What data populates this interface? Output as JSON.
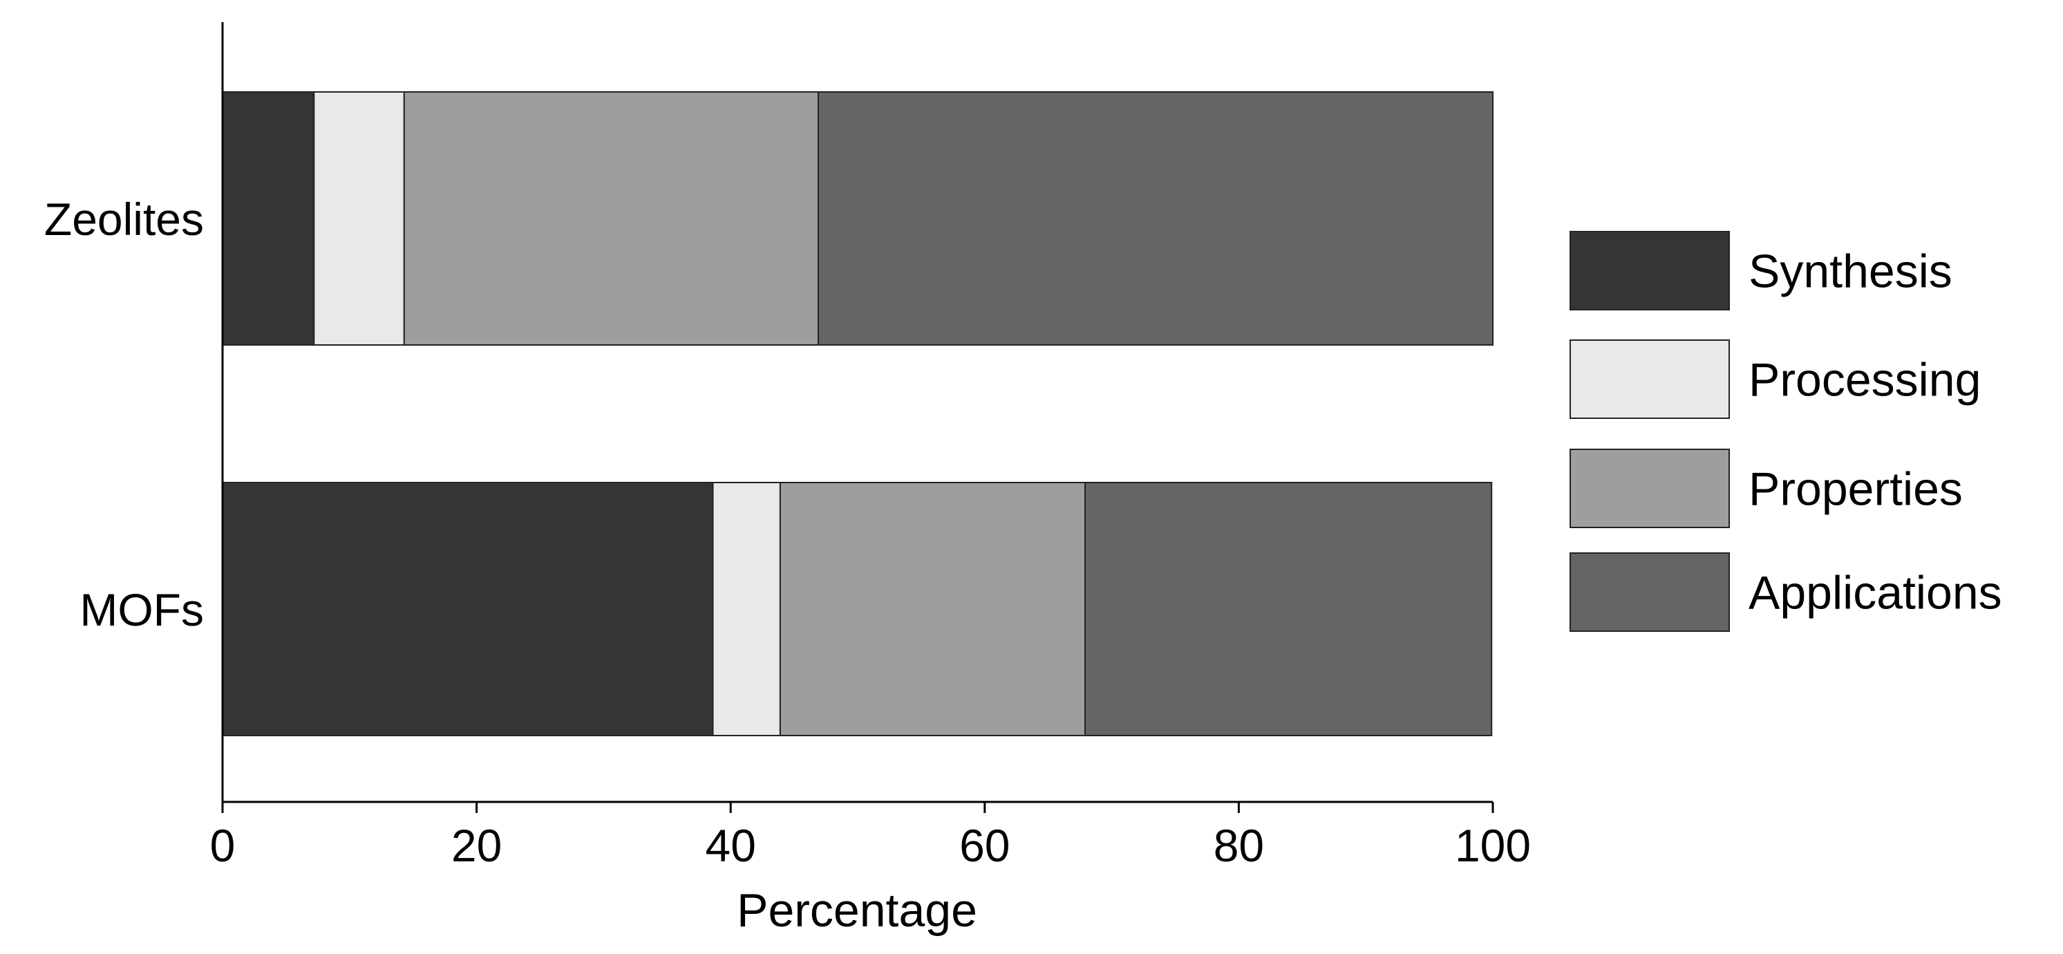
{
  "chart_data": {
    "type": "bar",
    "orientation": "horizontal",
    "stacked": true,
    "categories": [
      "Zeolites",
      "MOFs"
    ],
    "series": [
      {
        "name": "Synthesis",
        "values": [
          7.2,
          38.6
        ],
        "color": "#363534"
      },
      {
        "name": "Processing",
        "values": [
          7.1,
          5.3
        ],
        "color": "#e8e9e8"
      },
      {
        "name": "Properties",
        "values": [
          32.6,
          24.0
        ],
        "color": "#9d9e9d"
      },
      {
        "name": "Applications",
        "values": [
          53.1,
          32.0
        ],
        "color": "#666566"
      }
    ],
    "xlabel": "Percentage",
    "ylabel": "",
    "xlim": [
      0,
      100
    ],
    "xticks": [
      0,
      20,
      40,
      60,
      80,
      100
    ],
    "xtick_labels": [
      "0",
      "20",
      "40",
      "60",
      "80",
      "100"
    ],
    "grid": false,
    "legend_position": "right"
  }
}
